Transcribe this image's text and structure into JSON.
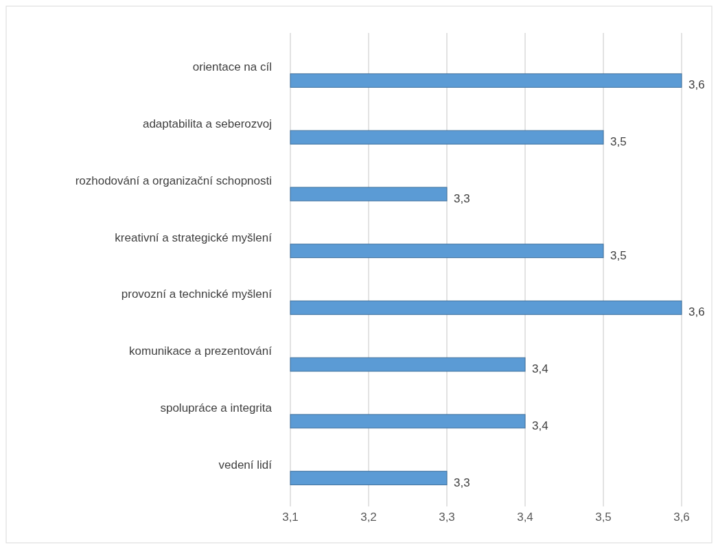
{
  "chart_data": {
    "type": "bar",
    "orientation": "horizontal",
    "categories": [
      "orientace na cíl",
      "adaptabilita a seberozvoj",
      "rozhodování a organizační schopnosti",
      "kreativní a strategické myšlení",
      "provozní a technické myšlení",
      "komunikace a prezentování",
      "spolupráce a integrita",
      "vedení lidí"
    ],
    "values": [
      3.6,
      3.5,
      3.3,
      3.5,
      3.6,
      3.4,
      3.4,
      3.3
    ],
    "value_labels": [
      "3,6",
      "3,5",
      "3,3",
      "3,5",
      "3,6",
      "3,4",
      "3,4",
      "3,3"
    ],
    "color": "#5b9bd5",
    "xlim": [
      3.1,
      3.6
    ],
    "xticks": [
      {
        "value": 3.1,
        "label": "3,1"
      },
      {
        "value": 3.2,
        "label": "3,2"
      },
      {
        "value": 3.3,
        "label": "3,3"
      },
      {
        "value": 3.4,
        "label": "3,4"
      },
      {
        "value": 3.5,
        "label": "3,5"
      },
      {
        "value": 3.6,
        "label": "3,6"
      }
    ],
    "grid": "x"
  }
}
